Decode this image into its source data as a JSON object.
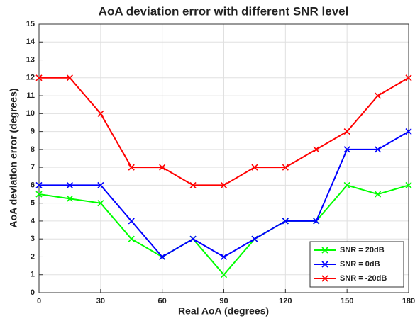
{
  "chart_data": {
    "type": "line",
    "title": "AoA deviation error with different SNR level",
    "xlabel": "Real AoA (degrees)",
    "ylabel": "AoA deviation error (degrees)",
    "x": [
      0,
      15,
      30,
      45,
      60,
      75,
      90,
      105,
      120,
      135,
      150,
      165,
      180
    ],
    "series": [
      {
        "name": "SNR = 20dB",
        "color": "#00ff00",
        "values": [
          5.5,
          5.25,
          5,
          3,
          2,
          3,
          1,
          3,
          4,
          4,
          6,
          5.5,
          6
        ]
      },
      {
        "name": "SNR = 0dB",
        "color": "#0000ff",
        "values": [
          6,
          6,
          6,
          4,
          2,
          3,
          2,
          3,
          4,
          4,
          8,
          8,
          9
        ]
      },
      {
        "name": "SNR = -20dB",
        "color": "#ff0000",
        "values": [
          12,
          12,
          10,
          7,
          7,
          6,
          6,
          7,
          7,
          8,
          9,
          11,
          12
        ]
      }
    ],
    "xlim": [
      0,
      180
    ],
    "xticks": [
      0,
      30,
      60,
      90,
      120,
      150,
      180
    ],
    "ylim": [
      0,
      15
    ],
    "yticks": [
      0,
      1,
      2,
      3,
      4,
      5,
      6,
      7,
      8,
      9,
      10,
      11,
      12,
      13,
      14,
      15
    ],
    "grid": true,
    "legend": "lower right"
  }
}
